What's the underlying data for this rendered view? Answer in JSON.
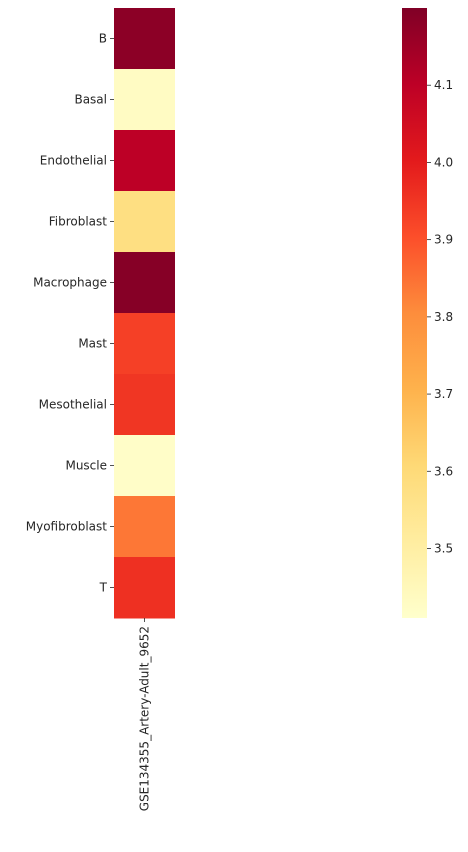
{
  "chart_data": {
    "type": "heatmap",
    "title": "",
    "xlabel": "",
    "ylabel": "",
    "columns": [
      "GSE134355_Artery-Adult_9652"
    ],
    "rows": [
      "B",
      "Basal",
      "Endothelial",
      "Fibroblast",
      "Macrophage",
      "Mast",
      "Mesothelial",
      "Muscle",
      "Myofibroblast",
      "T"
    ],
    "values": [
      [
        4.18
      ],
      [
        3.43
      ],
      [
        4.1
      ],
      [
        3.58
      ],
      [
        4.19
      ],
      [
        3.93
      ],
      [
        3.95
      ],
      [
        3.42
      ],
      [
        3.84
      ],
      [
        3.96
      ]
    ],
    "colormap": "YlOrRd",
    "color_range": [
      3.41,
      4.2
    ],
    "colorbar": {
      "ticks": [
        3.5,
        3.6,
        3.7,
        3.8,
        3.9,
        4.0,
        4.1
      ],
      "tick_labels": [
        "3.5",
        "3.6",
        "3.7",
        "3.8",
        "3.9",
        "4.0",
        "4.1"
      ]
    }
  }
}
